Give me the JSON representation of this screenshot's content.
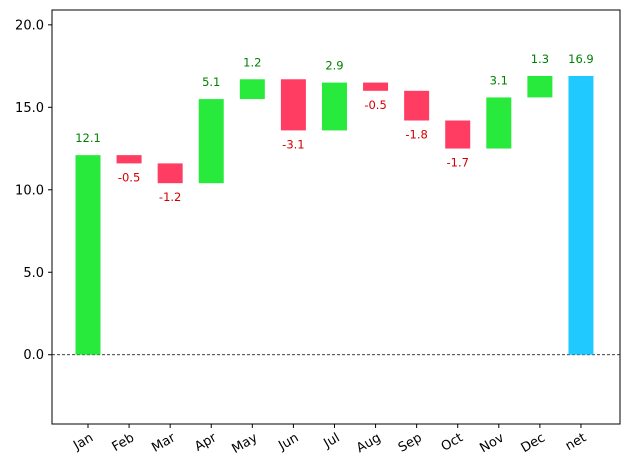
{
  "chart_data": {
    "type": "bar",
    "subtype": "waterfall",
    "categories": [
      "Jan",
      "Feb",
      "Mar",
      "Apr",
      "May",
      "Jun",
      "Jul",
      "Aug",
      "Sep",
      "Oct",
      "Nov",
      "Dec",
      "net"
    ],
    "values": [
      12.1,
      -0.5,
      -1.2,
      5.1,
      1.2,
      -3.1,
      2.9,
      -0.5,
      -1.8,
      -1.7,
      3.1,
      1.3,
      16.9
    ],
    "labels": [
      "12.1",
      "-0.5",
      "-1.2",
      "5.1",
      "1.2",
      "-3.1",
      "2.9",
      "-0.5",
      "-1.8",
      "-1.7",
      "3.1",
      "1.3",
      "16.9"
    ],
    "net_index": 12,
    "ylim": [
      -4.2,
      20.9
    ],
    "yticks": [
      0.0,
      5.0,
      10.0,
      15.0,
      20.0
    ],
    "ytick_labels": [
      "0.0",
      "5.0",
      "10.0",
      "15.0",
      "20.0"
    ],
    "zero_line": true,
    "grid": false,
    "title": "",
    "xlabel": "",
    "ylabel": "",
    "colors": {
      "positive": "#28ea3d",
      "negative": "#ff3d62",
      "net": "#20c9ff",
      "positive_label": "#008000",
      "negative_label": "#d40000",
      "axis": "#000000"
    }
  }
}
